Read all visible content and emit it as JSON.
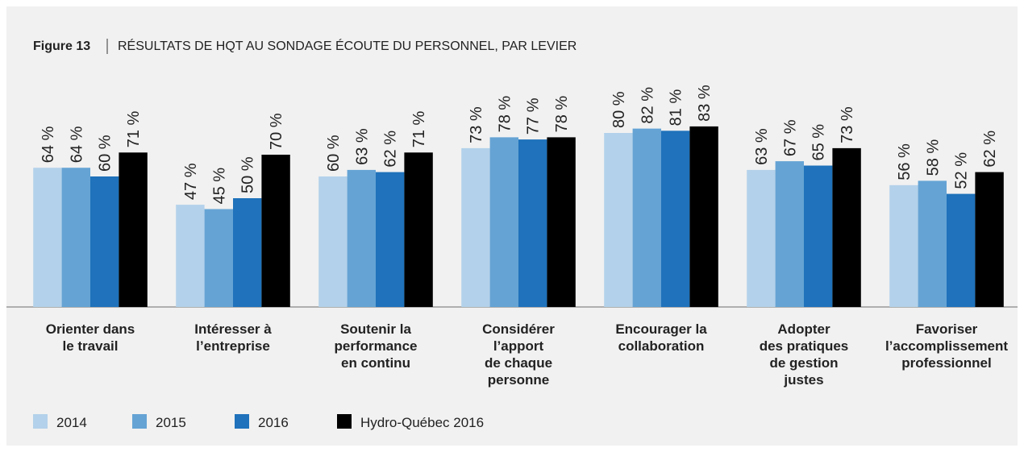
{
  "chart_data": {
    "type": "bar",
    "figure": "Figure 13",
    "title": "RÉSULTATS DE HQT AU SONDAGE ÉCOUTE DU PERSONNEL, PAR LEVIER",
    "categories": [
      "Orienter dans\nle travail",
      "Intéresser à\nl’entreprise",
      "Soutenir la\nperformance\nen continu",
      "Considérer\nl’apport\nde chaque\npersonne",
      "Encourager la\ncollaboration",
      "Adopter\ndes pratiques\nde gestion\njustes",
      "Favoriser\nl’accomplissement\nprofessionnel"
    ],
    "series": [
      {
        "name": "2014",
        "color": "#b3d1ea",
        "values": [
          64,
          47,
          60,
          73,
          80,
          63,
          56
        ],
        "value_labels": [
          "64 %",
          "47 %",
          "60 %",
          "73 %",
          "80 %",
          "63 %",
          "56 %"
        ]
      },
      {
        "name": "2015",
        "color": "#65a3d4",
        "values": [
          64,
          45,
          63,
          78,
          82,
          67,
          58
        ],
        "value_labels": [
          "64 %",
          "45 %",
          "63 %",
          "78 %",
          "82 %",
          "67 %",
          "58 %"
        ]
      },
      {
        "name": "2016",
        "color": "#1f72bb",
        "values": [
          60,
          50,
          62,
          77,
          81,
          65,
          52
        ],
        "value_labels": [
          "60 %",
          "50 %",
          "62 %",
          "77 %",
          "81 %",
          "65 %",
          "52 %"
        ]
      },
      {
        "name": "Hydro-Québec 2016",
        "color": "#000000",
        "values": [
          71,
          70,
          71,
          78,
          83,
          73,
          62
        ],
        "value_labels": [
          "71 %",
          "70 %",
          "71 %",
          "78 %",
          "83 %",
          "73 %",
          "62 %"
        ]
      }
    ],
    "ylim": [
      0,
      100
    ]
  }
}
